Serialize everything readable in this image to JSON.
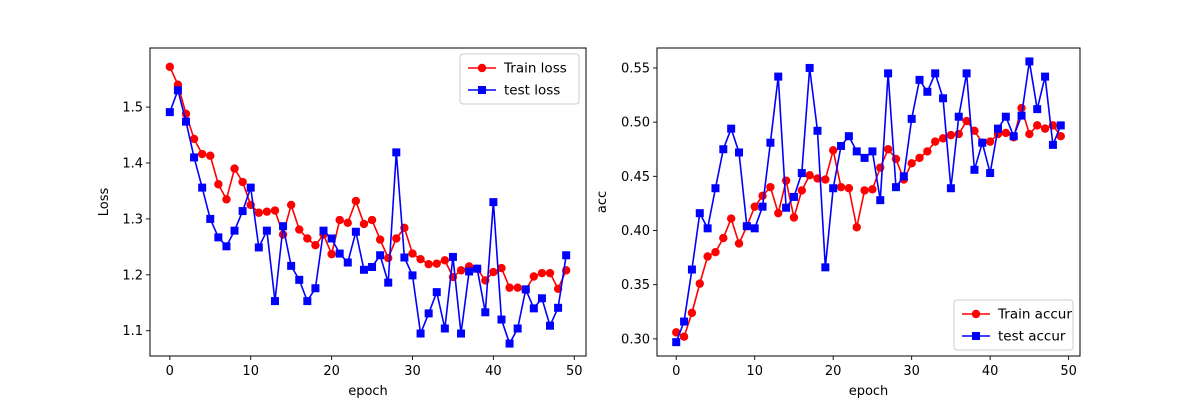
{
  "chart_data": [
    {
      "type": "line",
      "title": "",
      "xlabel": "epoch",
      "ylabel": "Loss",
      "xlim": [
        -2.45,
        51.45
      ],
      "ylim": [
        1.0548,
        1.6057
      ],
      "xticks": [
        0,
        10,
        20,
        30,
        40,
        50
      ],
      "yticks": [
        1.1,
        1.2,
        1.3,
        1.4,
        1.5
      ],
      "ytick_labels": [
        "1.1",
        "1.2",
        "1.3",
        "1.4",
        "1.5"
      ],
      "legend_position": "upper right",
      "grid": false,
      "x": [
        0,
        1,
        2,
        3,
        4,
        5,
        6,
        7,
        8,
        9,
        10,
        11,
        12,
        13,
        14,
        15,
        16,
        17,
        18,
        19,
        20,
        21,
        22,
        23,
        24,
        25,
        26,
        27,
        28,
        29,
        30,
        31,
        32,
        33,
        34,
        35,
        36,
        37,
        38,
        39,
        40,
        41,
        42,
        43,
        44,
        45,
        46,
        47,
        48,
        49
      ],
      "series": [
        {
          "name": "Train loss",
          "color": "#ff0000",
          "marker": "circle",
          "values": [
            1.572,
            1.54,
            1.488,
            1.443,
            1.416,
            1.413,
            1.362,
            1.335,
            1.39,
            1.366,
            1.325,
            1.311,
            1.313,
            1.315,
            1.272,
            1.325,
            1.281,
            1.265,
            1.253,
            1.272,
            1.237,
            1.298,
            1.293,
            1.332,
            1.291,
            1.298,
            1.263,
            1.23,
            1.265,
            1.284,
            1.238,
            1.228,
            1.219,
            1.22,
            1.226,
            1.196,
            1.208,
            1.215,
            1.211,
            1.19,
            1.205,
            1.212,
            1.177,
            1.177,
            1.173,
            1.197,
            1.203,
            1.203,
            1.175,
            1.208
          ]
        },
        {
          "name": "test loss",
          "color": "#0000ff",
          "marker": "square",
          "values": [
            1.491,
            1.53,
            1.474,
            1.41,
            1.356,
            1.3,
            1.267,
            1.251,
            1.279,
            1.314,
            1.356,
            1.249,
            1.279,
            1.153,
            1.287,
            1.216,
            1.191,
            1.153,
            1.176,
            1.279,
            1.265,
            1.238,
            1.222,
            1.277,
            1.209,
            1.214,
            1.235,
            1.186,
            1.419,
            1.231,
            1.199,
            1.095,
            1.131,
            1.169,
            1.104,
            1.232,
            1.095,
            1.206,
            1.211,
            1.133,
            1.33,
            1.12,
            1.077,
            1.104,
            1.174,
            1.14,
            1.158,
            1.109,
            1.141,
            1.235
          ]
        }
      ]
    },
    {
      "type": "line",
      "title": "",
      "xlabel": "epoch",
      "ylabel": "acc",
      "xlim": [
        -2.45,
        51.45
      ],
      "ylim": [
        0.2842,
        0.5684
      ],
      "xticks": [
        0,
        10,
        20,
        30,
        40,
        50
      ],
      "yticks": [
        0.3,
        0.35,
        0.4,
        0.45,
        0.5,
        0.55
      ],
      "ytick_labels": [
        "0.30",
        "0.35",
        "0.40",
        "0.45",
        "0.50",
        "0.55"
      ],
      "legend_position": "lower right",
      "grid": false,
      "x": [
        0,
        1,
        2,
        3,
        4,
        5,
        6,
        7,
        8,
        9,
        10,
        11,
        12,
        13,
        14,
        15,
        16,
        17,
        18,
        19,
        20,
        21,
        22,
        23,
        24,
        25,
        26,
        27,
        28,
        29,
        30,
        31,
        32,
        33,
        34,
        35,
        36,
        37,
        38,
        39,
        40,
        41,
        42,
        43,
        44,
        45,
        46,
        47,
        48,
        49
      ],
      "series": [
        {
          "name": "Train accur",
          "color": "#ff0000",
          "marker": "circle",
          "values": [
            0.306,
            0.302,
            0.324,
            0.351,
            0.376,
            0.38,
            0.393,
            0.411,
            0.388,
            0.404,
            0.422,
            0.432,
            0.44,
            0.416,
            0.446,
            0.412,
            0.437,
            0.451,
            0.448,
            0.447,
            0.474,
            0.44,
            0.439,
            0.403,
            0.437,
            0.438,
            0.458,
            0.475,
            0.466,
            0.447,
            0.462,
            0.467,
            0.473,
            0.482,
            0.485,
            0.488,
            0.489,
            0.501,
            0.492,
            0.481,
            0.482,
            0.489,
            0.49,
            0.486,
            0.513,
            0.489,
            0.497,
            0.494,
            0.497,
            0.487
          ]
        },
        {
          "name": "test accur",
          "color": "#0000ff",
          "marker": "square",
          "values": [
            0.297,
            0.316,
            0.364,
            0.416,
            0.402,
            0.439,
            0.475,
            0.494,
            0.472,
            0.404,
            0.402,
            0.422,
            0.481,
            0.542,
            0.421,
            0.431,
            0.453,
            0.55,
            0.492,
            0.366,
            0.439,
            0.478,
            0.487,
            0.473,
            0.467,
            0.473,
            0.428,
            0.545,
            0.44,
            0.45,
            0.503,
            0.539,
            0.528,
            0.545,
            0.522,
            0.439,
            0.505,
            0.545,
            0.456,
            0.481,
            0.453,
            0.494,
            0.505,
            0.487,
            0.506,
            0.556,
            0.512,
            0.542,
            0.479,
            0.497
          ]
        }
      ]
    }
  ]
}
